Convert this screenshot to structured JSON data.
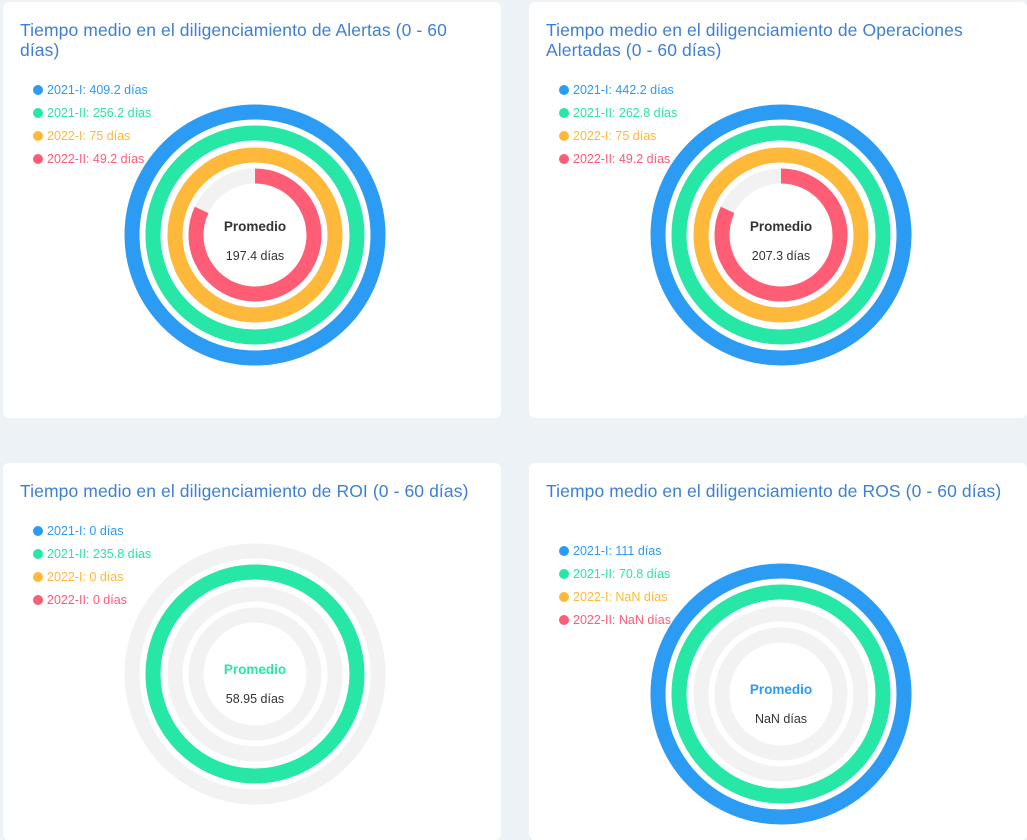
{
  "colors": {
    "series": [
      "#2b9bf4",
      "#26e7a6",
      "#feb93a",
      "#ff5c75"
    ],
    "track": "#f2f2f2"
  },
  "charts": [
    {
      "title": "Tiempo medio en el diligenciamiento de Alertas (0 - 60 días)",
      "legend": [
        "2021-I: 409.2 días",
        "2021-II: 256.2 días",
        "2022-I: 75 días",
        "2022-II: 49.2 días"
      ],
      "center_label": "Promedio",
      "center_value": "197.4 días"
    },
    {
      "title": "Tiempo medio en el diligenciamiento de Operaciones Alertadas (0 - 60 días)",
      "legend": [
        "2021-I: 442.2 días",
        "2021-II: 262.8 días",
        "2022-I: 75 días",
        "2022-II: 49.2 días"
      ],
      "center_label": "Promedio",
      "center_value": "207.3 días"
    },
    {
      "title": "Tiempo medio en el diligenciamiento de ROI (0 - 60 días)",
      "legend": [
        "2021-I: 0 días",
        "2021-II: 235.8 días",
        "2022-I: 0 días",
        "2022-II: 0 días"
      ],
      "center_label": "Promedio",
      "center_value": "58.95 días"
    },
    {
      "title": "Tiempo medio en el diligenciamiento de ROS (0 - 60 días)",
      "legend": [
        "2021-I: 111 días",
        "2021-II: 70.8 días",
        "2022-I: NaN días",
        "2022-II: NaN días"
      ],
      "center_label": "Promedio",
      "center_value": "NaN días"
    }
  ],
  "chart_data": [
    {
      "type": "radialBar",
      "title": "Tiempo medio en el diligenciamiento de Alertas (0 - 60 días)",
      "categories": [
        "2021-I",
        "2021-II",
        "2022-I",
        "2022-II"
      ],
      "values": [
        409.2,
        256.2,
        75,
        49.2
      ],
      "range": [
        0,
        60
      ],
      "unit": "días",
      "average": 197.4
    },
    {
      "type": "radialBar",
      "title": "Tiempo medio en el diligenciamiento de Operaciones Alertadas (0 - 60 días)",
      "categories": [
        "2021-I",
        "2021-II",
        "2022-I",
        "2022-II"
      ],
      "values": [
        442.2,
        262.8,
        75,
        49.2
      ],
      "range": [
        0,
        60
      ],
      "unit": "días",
      "average": 207.3
    },
    {
      "type": "radialBar",
      "title": "Tiempo medio en el diligenciamiento de ROI (0 - 60 días)",
      "categories": [
        "2021-I",
        "2021-II",
        "2022-I",
        "2022-II"
      ],
      "values": [
        0,
        235.8,
        0,
        0
      ],
      "range": [
        0,
        60
      ],
      "unit": "días",
      "average": 58.95
    },
    {
      "type": "radialBar",
      "title": "Tiempo medio en el diligenciamiento de ROS (0 - 60 días)",
      "categories": [
        "2021-I",
        "2021-II",
        "2022-I",
        "2022-II"
      ],
      "values": [
        111,
        70.8,
        null,
        null
      ],
      "range": [
        0,
        60
      ],
      "unit": "días",
      "average": null
    }
  ]
}
